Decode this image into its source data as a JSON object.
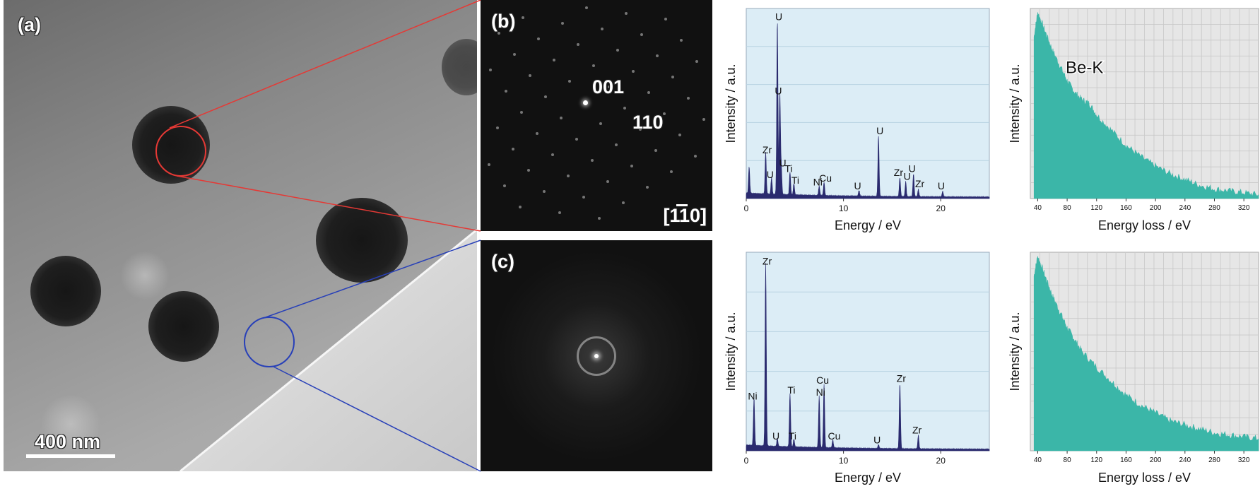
{
  "figure": {
    "panel_a_label": "(a)",
    "panel_b_label": "(b)",
    "panel_c_label": "(c)",
    "scale_bar_label": "400 nm",
    "diffraction_b": {
      "spot_labels": [
        "001",
        "110"
      ],
      "zone_axis": "[110]"
    },
    "colors": {
      "red_circle": "#e53935",
      "blue_circle": "#2840b8",
      "eds_bg": "#dcedf6",
      "eds_fill": "#2a2a6e",
      "eels_bg": "#e6e6e6",
      "eels_fill": "#3bb6a8"
    }
  },
  "chart_data": [
    {
      "id": "eds-top",
      "type": "area",
      "xlabel": "Energy / eV",
      "ylabel": "Intensity / a.u.",
      "xlim": [
        0,
        25
      ],
      "x_ticks": [
        0,
        10,
        20
      ],
      "ylim": [
        0,
        100
      ],
      "peaks": [
        {
          "x": 0.3,
          "y": 14
        },
        {
          "x": 2.0,
          "y": 22,
          "label": "Zr"
        },
        {
          "x": 2.6,
          "y": 9,
          "label": "U"
        },
        {
          "x": 3.2,
          "y": 92,
          "label": "U"
        },
        {
          "x": 3.45,
          "y": 53,
          "label": "U"
        },
        {
          "x": 3.6,
          "y": 15,
          "label": "U"
        },
        {
          "x": 4.5,
          "y": 12,
          "label": "Ti"
        },
        {
          "x": 4.9,
          "y": 6,
          "label": "Ti"
        },
        {
          "x": 7.5,
          "y": 5,
          "label": "Ni"
        },
        {
          "x": 8.0,
          "y": 7,
          "label": "Cu"
        },
        {
          "x": 11.6,
          "y": 3,
          "label": "U"
        },
        {
          "x": 13.6,
          "y": 32,
          "label": "U"
        },
        {
          "x": 15.8,
          "y": 10,
          "label": "Zr"
        },
        {
          "x": 16.4,
          "y": 8,
          "label": "U"
        },
        {
          "x": 17.2,
          "y": 12,
          "label": "U"
        },
        {
          "x": 17.7,
          "y": 4,
          "label": "Zr"
        },
        {
          "x": 20.2,
          "y": 3,
          "label": "U"
        }
      ]
    },
    {
      "id": "eels-top",
      "type": "area",
      "xlabel": "Energy loss / eV",
      "ylabel": "Intensity / a.u.",
      "xlim": [
        30,
        340
      ],
      "x_ticks": [
        40,
        80,
        120,
        160,
        200,
        240,
        280,
        320
      ],
      "annotation": "Be-K",
      "curve": [
        [
          35,
          85
        ],
        [
          40,
          98
        ],
        [
          50,
          88
        ],
        [
          60,
          78
        ],
        [
          70,
          70
        ],
        [
          80,
          62
        ],
        [
          90,
          56
        ],
        [
          100,
          52
        ],
        [
          110,
          50
        ],
        [
          120,
          44
        ],
        [
          140,
          36
        ],
        [
          160,
          28
        ],
        [
          180,
          22
        ],
        [
          200,
          17
        ],
        [
          220,
          13
        ],
        [
          240,
          10
        ],
        [
          260,
          7
        ],
        [
          280,
          5
        ],
        [
          300,
          4
        ],
        [
          320,
          3
        ],
        [
          340,
          2
        ]
      ]
    },
    {
      "id": "eds-bottom",
      "type": "area",
      "xlabel": "Energy / eV",
      "ylabel": "Intensity / a.u.",
      "xlim": [
        0,
        25
      ],
      "x_ticks": [
        0,
        10,
        20
      ],
      "ylim": [
        0,
        100
      ],
      "peaks": [
        {
          "x": 0.8,
          "y": 24,
          "label": "Ni"
        },
        {
          "x": 2.0,
          "y": 92,
          "label": "Zr"
        },
        {
          "x": 3.2,
          "y": 4,
          "label": "U"
        },
        {
          "x": 4.5,
          "y": 27,
          "label": "Ti"
        },
        {
          "x": 4.9,
          "y": 4,
          "label": "Ti"
        },
        {
          "x": 7.5,
          "y": 26,
          "label": "Ni"
        },
        {
          "x": 8.0,
          "y": 32,
          "label": "Cu"
        },
        {
          "x": 8.9,
          "y": 4,
          "label": "Cu"
        },
        {
          "x": 13.6,
          "y": 2,
          "label": "U"
        },
        {
          "x": 15.8,
          "y": 33,
          "label": "Zr"
        },
        {
          "x": 17.7,
          "y": 7,
          "label": "Zr"
        }
      ]
    },
    {
      "id": "eels-bottom",
      "type": "area",
      "xlabel": "Energy loss / eV",
      "ylabel": "Intensity / a.u.",
      "xlim": [
        30,
        340
      ],
      "x_ticks": [
        40,
        80,
        120,
        160,
        200,
        240,
        280,
        320
      ],
      "curve": [
        [
          35,
          88
        ],
        [
          40,
          98
        ],
        [
          50,
          88
        ],
        [
          60,
          78
        ],
        [
          70,
          70
        ],
        [
          80,
          62
        ],
        [
          90,
          56
        ],
        [
          100,
          50
        ],
        [
          120,
          42
        ],
        [
          140,
          35
        ],
        [
          160,
          28
        ],
        [
          180,
          23
        ],
        [
          200,
          19
        ],
        [
          220,
          15
        ],
        [
          240,
          13
        ],
        [
          260,
          11
        ],
        [
          280,
          9
        ],
        [
          300,
          8
        ],
        [
          320,
          7
        ],
        [
          340,
          6
        ]
      ]
    }
  ]
}
